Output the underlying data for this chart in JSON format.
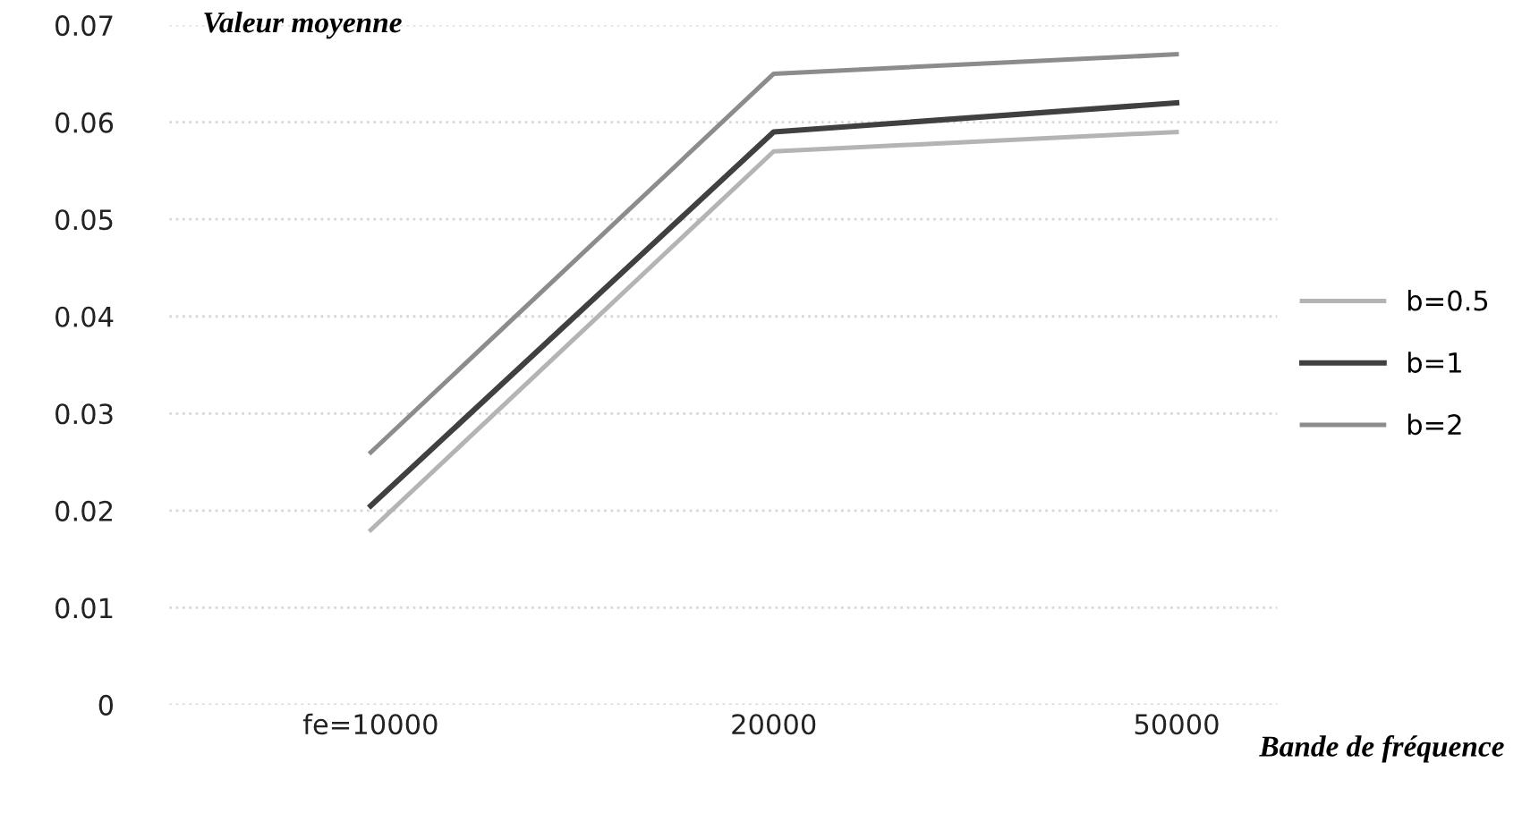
{
  "chart_data": {
    "type": "line",
    "xlabel": "Bande de fréquence",
    "ylabel": "Valeur moyenne",
    "categories": [
      "fe=10000",
      "20000",
      "50000"
    ],
    "series": [
      {
        "name": "b=0.5",
        "color": "#b4b4b4",
        "values": [
          0.018,
          0.057,
          0.059
        ]
      },
      {
        "name": "b=1",
        "color": "#404040",
        "values": [
          0.0205,
          0.059,
          0.062
        ]
      },
      {
        "name": "b=2",
        "color": "#8c8c8c",
        "values": [
          0.026,
          0.065,
          0.067
        ]
      }
    ],
    "ylim": [
      0,
      0.07
    ],
    "yticks": [
      0,
      0.01,
      0.02,
      0.03,
      0.04,
      0.05,
      0.06,
      0.07
    ],
    "grid": "y",
    "legend": "right",
    "marker": "none",
    "line_style": "solid"
  }
}
